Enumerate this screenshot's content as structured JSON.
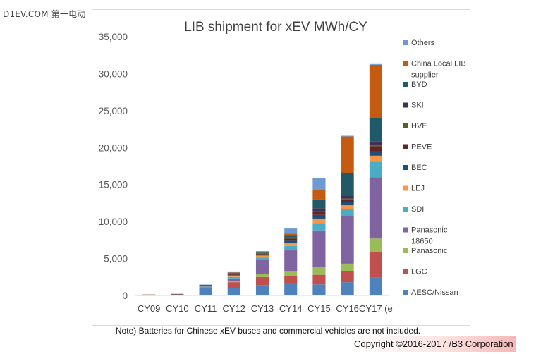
{
  "watermark": "D1EV.COM 第一电动",
  "note": "Note) Batteries for Chinese xEV buses and commercial vehicles are not included.",
  "copyright": "Copyright ©2016-2017 /B3 Corporation",
  "chart_data": {
    "type": "bar",
    "stacked": true,
    "title": "LIB shipment for xEV  MWh/CY",
    "xlabel": "",
    "ylabel": "",
    "ylim": [
      0,
      35000
    ],
    "yticks": [
      0,
      5000,
      10000,
      15000,
      20000,
      25000,
      30000,
      35000
    ],
    "ytick_labels": [
      "0",
      "5,000",
      "10,000",
      "15,000",
      "20,000",
      "25,000",
      "30,000",
      "35,000"
    ],
    "grid": false,
    "legend_position": "right",
    "categories": [
      "CY09",
      "CY10",
      "CY11",
      "CY12",
      "CY13",
      "CY14",
      "CY15",
      "CY16",
      "CY17 (e"
    ],
    "series": [
      {
        "name": "AESC/Nissan",
        "color": "#4f81bd",
        "values": [
          50,
          80,
          1000,
          1000,
          1400,
          1700,
          1500,
          1800,
          2400
        ]
      },
      {
        "name": "LGC",
        "color": "#c0504d",
        "values": [
          20,
          30,
          100,
          800,
          1100,
          1000,
          1300,
          1500,
          3500
        ]
      },
      {
        "name": "Panasonic",
        "color": "#9bbb59",
        "values": [
          10,
          20,
          80,
          200,
          400,
          600,
          1000,
          1000,
          1800
        ]
      },
      {
        "name": "Panasonic 18650",
        "color": "#8064a2",
        "values": [
          10,
          20,
          50,
          300,
          2000,
          2800,
          5000,
          6400,
          8300
        ]
      },
      {
        "name": "SDI",
        "color": "#4bacc6",
        "values": [
          10,
          20,
          50,
          200,
          200,
          600,
          1000,
          1000,
          2100
        ]
      },
      {
        "name": "LEJ",
        "color": "#f79646",
        "values": [
          10,
          20,
          50,
          200,
          300,
          400,
          600,
          500,
          800
        ]
      },
      {
        "name": "BEC",
        "color": "#1f4e79",
        "values": [
          0,
          0,
          30,
          100,
          100,
          300,
          500,
          400,
          600
        ]
      },
      {
        "name": "PEVE",
        "color": "#632523",
        "values": [
          10,
          20,
          30,
          100,
          100,
          300,
          400,
          400,
          700
        ]
      },
      {
        "name": "HVE",
        "color": "#4f6228",
        "values": [
          0,
          0,
          10,
          30,
          50,
          50,
          100,
          100,
          100
        ]
      },
      {
        "name": "SKI",
        "color": "#3f3151",
        "values": [
          0,
          0,
          10,
          30,
          50,
          100,
          400,
          400,
          500
        ]
      },
      {
        "name": "BYD",
        "color": "#215968",
        "values": [
          0,
          0,
          20,
          50,
          100,
          300,
          1200,
          3000,
          3200
        ]
      },
      {
        "name": "China Local LIB supplier",
        "color": "#c55a11",
        "values": [
          0,
          0,
          30,
          100,
          100,
          200,
          1300,
          5000,
          7200
        ]
      },
      {
        "name": "Others",
        "color": "#6d9bd1",
        "values": [
          0,
          0,
          20,
          50,
          100,
          700,
          1600,
          100,
          100
        ]
      }
    ],
    "legend_labels": [
      [
        "Others"
      ],
      [
        "China Local LIB",
        "supplier"
      ],
      [
        "BYD"
      ],
      [
        "SKI"
      ],
      [
        "HVE"
      ],
      [
        "PEVE"
      ],
      [
        "BEC"
      ],
      [
        "LEJ"
      ],
      [
        "SDI"
      ],
      [
        "Panasonic",
        "18650"
      ],
      [
        "Panasonic"
      ],
      [
        "LGC"
      ],
      [
        "AESC/Nissan"
      ]
    ]
  }
}
